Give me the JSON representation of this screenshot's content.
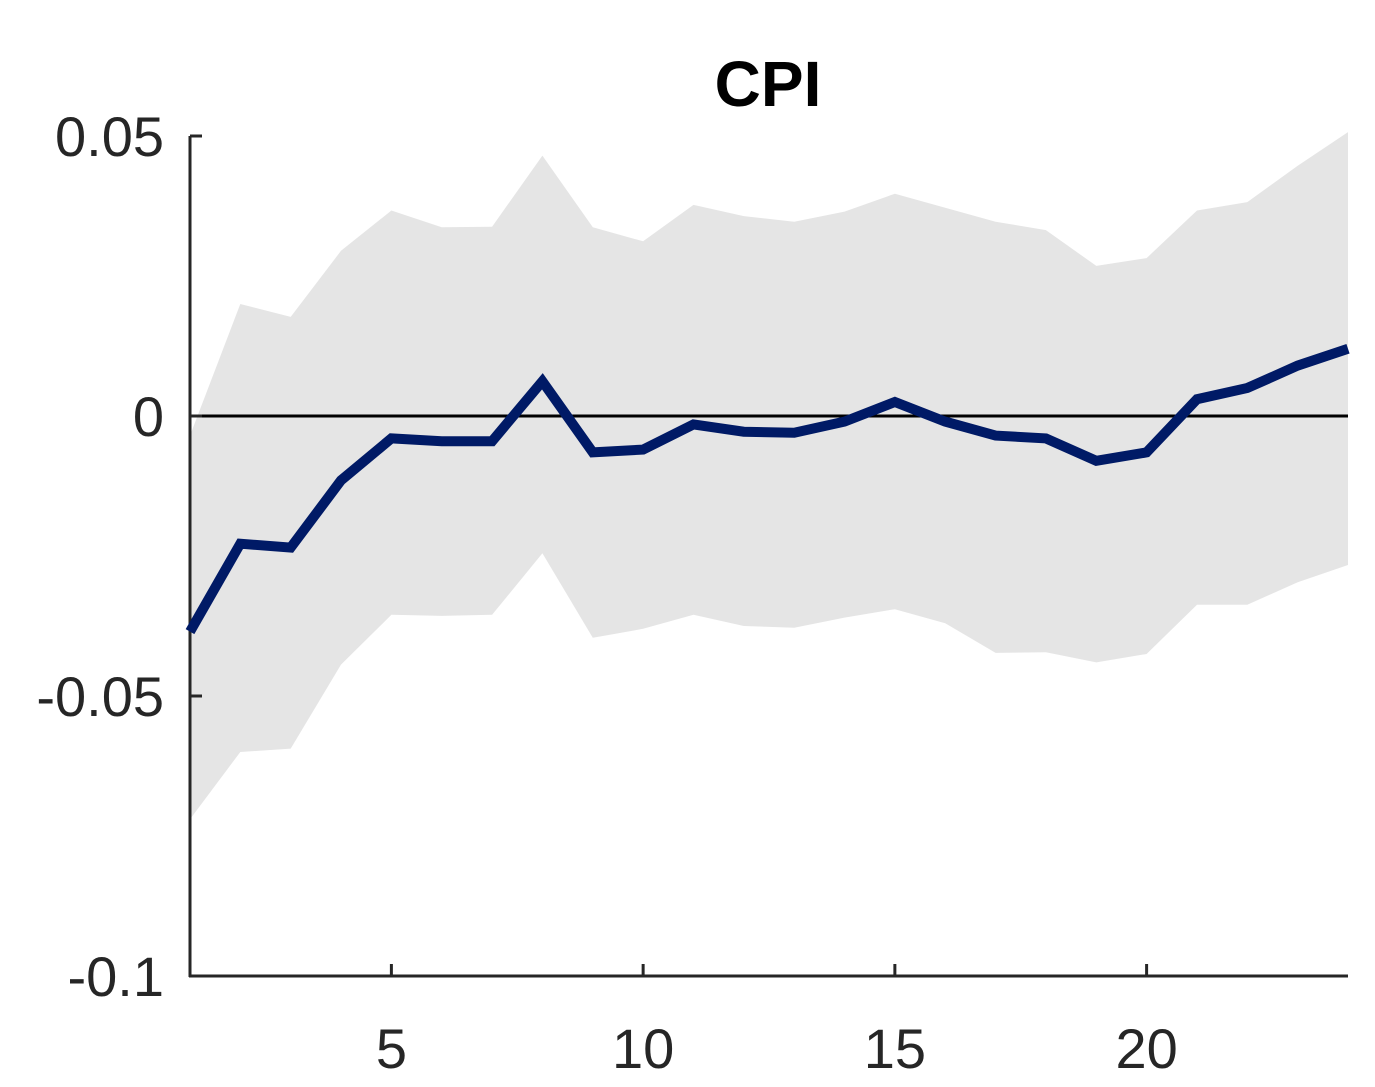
{
  "chart_data": {
    "type": "area",
    "title": "CPI",
    "xlabel": "",
    "ylabel": "",
    "xlim": [
      1,
      24
    ],
    "ylim": [
      -0.1,
      0.05
    ],
    "x_ticks": [
      5,
      10,
      15,
      20
    ],
    "x_tick_labels": [
      "5",
      "10",
      "15",
      "20"
    ],
    "y_ticks": [
      0.05,
      0,
      -0.05,
      -0.1
    ],
    "y_tick_labels": [
      "0.05",
      "0",
      "-0.05",
      "-0.1"
    ],
    "grid": false,
    "legend": "none",
    "zero_line": true,
    "x": [
      1,
      2,
      3,
      4,
      5,
      6,
      7,
      8,
      9,
      10,
      11,
      12,
      13,
      14,
      15,
      16,
      17,
      18,
      19,
      20,
      21,
      22,
      23,
      24
    ],
    "series": [
      {
        "role": "estimate",
        "color": "#001a66",
        "values": [
          -0.0385,
          -0.0228,
          -0.0235,
          -0.0115,
          -0.004,
          -0.0045,
          -0.0045,
          0.0062,
          -0.0065,
          -0.006,
          -0.0015,
          -0.0028,
          -0.003,
          -0.001,
          0.0025,
          -0.001,
          -0.0035,
          -0.004,
          -0.008,
          -0.0065,
          0.003,
          0.005,
          0.009,
          0.012
        ]
      },
      {
        "role": "upper_band",
        "color": "#e5e5e5",
        "values": [
          -0.0035,
          0.02,
          0.0177,
          0.0295,
          0.0367,
          0.0337,
          0.0338,
          0.0465,
          0.0337,
          0.0312,
          0.0377,
          0.0357,
          0.0347,
          0.0365,
          0.0397,
          0.0372,
          0.0347,
          0.0332,
          0.0268,
          0.0282,
          0.0367,
          0.0382,
          0.0447,
          0.0507
        ]
      },
      {
        "role": "lower_band",
        "color": "#e5e5e5",
        "values": [
          -0.072,
          -0.06,
          -0.0594,
          -0.0444,
          -0.0355,
          -0.0357,
          -0.0355,
          -0.0245,
          -0.0396,
          -0.038,
          -0.0355,
          -0.0375,
          -0.0378,
          -0.036,
          -0.0345,
          -0.037,
          -0.0423,
          -0.0422,
          -0.044,
          -0.0425,
          -0.0337,
          -0.0337,
          -0.0297,
          -0.0266
        ]
      }
    ]
  }
}
